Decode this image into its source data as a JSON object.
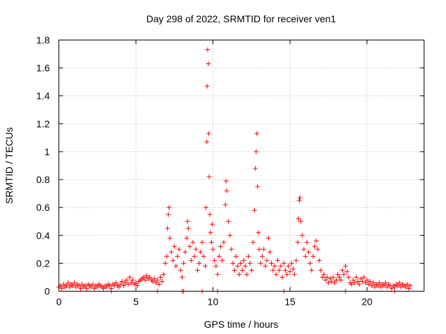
{
  "chart_data": {
    "type": "scatter",
    "title": "Day 298 of 2022, SRMTID for receiver ven1",
    "xlabel": "GPS time / hours",
    "ylabel": "SRMTID / TECUs",
    "xlim": [
      0,
      23.7
    ],
    "ylim": [
      0,
      1.8
    ],
    "xticks": [
      0,
      5,
      10,
      15,
      20
    ],
    "xtick_labels": [
      "0",
      "5",
      "10",
      "15",
      "20"
    ],
    "yticks": [
      0,
      0.2,
      0.4,
      0.6,
      0.8,
      1,
      1.2,
      1.4,
      1.6,
      1.8
    ],
    "ytick_labels": [
      "0",
      "0.2",
      "0.4",
      "0.6",
      "0.8",
      "1",
      "1.2",
      "1.4",
      "1.6",
      "1.8"
    ],
    "grid": true,
    "marker": "plus",
    "series_color": "#ff0000",
    "series": [
      {
        "name": "SRMTID",
        "points": [
          [
            0.0,
            0.03
          ],
          [
            0.1,
            0.04
          ],
          [
            0.2,
            0.02
          ],
          [
            0.3,
            0.05
          ],
          [
            0.4,
            0.03
          ],
          [
            0.5,
            0.04
          ],
          [
            0.6,
            0.06
          ],
          [
            0.7,
            0.03
          ],
          [
            0.8,
            0.05
          ],
          [
            0.9,
            0.04
          ],
          [
            1.0,
            0.06
          ],
          [
            1.1,
            0.03
          ],
          [
            1.2,
            0.05
          ],
          [
            1.3,
            0.04
          ],
          [
            1.4,
            0.02
          ],
          [
            1.5,
            0.05
          ],
          [
            1.6,
            0.03
          ],
          [
            1.7,
            0.04
          ],
          [
            1.8,
            0.02
          ],
          [
            1.9,
            0.05
          ],
          [
            2.0,
            0.04
          ],
          [
            2.1,
            0.03
          ],
          [
            2.2,
            0.05
          ],
          [
            2.3,
            0.02
          ],
          [
            2.4,
            0.04
          ],
          [
            2.5,
            0.03
          ],
          [
            2.6,
            0.05
          ],
          [
            2.7,
            0.04
          ],
          [
            2.8,
            0.03
          ],
          [
            2.9,
            0.02
          ],
          [
            3.0,
            0.04
          ],
          [
            3.1,
            0.03
          ],
          [
            3.2,
            0.05
          ],
          [
            3.3,
            0.04
          ],
          [
            3.4,
            0.02
          ],
          [
            3.5,
            0.05
          ],
          [
            3.6,
            0.04
          ],
          [
            3.7,
            0.06
          ],
          [
            3.8,
            0.04
          ],
          [
            3.9,
            0.03
          ],
          [
            4.0,
            0.05
          ],
          [
            4.1,
            0.07
          ],
          [
            4.2,
            0.04
          ],
          [
            4.3,
            0.06
          ],
          [
            4.4,
            0.08
          ],
          [
            4.5,
            0.05
          ],
          [
            4.6,
            0.1
          ],
          [
            4.7,
            0.06
          ],
          [
            4.8,
            0.08
          ],
          [
            4.9,
            0.05
          ],
          [
            5.0,
            0.06
          ],
          [
            5.1,
            0.04
          ],
          [
            5.2,
            0.07
          ],
          [
            5.3,
            0.08
          ],
          [
            5.4,
            0.09
          ],
          [
            5.5,
            0.1
          ],
          [
            5.6,
            0.08
          ],
          [
            5.7,
            0.11
          ],
          [
            5.8,
            0.09
          ],
          [
            5.9,
            0.1
          ],
          [
            6.0,
            0.08
          ],
          [
            6.1,
            0.07
          ],
          [
            6.2,
            0.09
          ],
          [
            6.3,
            0.06
          ],
          [
            6.4,
            0.08
          ],
          [
            6.5,
            0.05
          ],
          [
            6.6,
            0.1
          ],
          [
            6.7,
            0.07
          ],
          [
            6.8,
            0.12
          ],
          [
            6.9,
            0.2
          ],
          [
            7.0,
            0.25
          ],
          [
            7.05,
            0.45
          ],
          [
            7.1,
            0.55
          ],
          [
            7.15,
            0.6
          ],
          [
            7.2,
            0.38
          ],
          [
            7.3,
            0.28
          ],
          [
            7.4,
            0.22
          ],
          [
            7.5,
            0.32
          ],
          [
            7.6,
            0.18
          ],
          [
            7.7,
            0.25
          ],
          [
            7.8,
            0.3
          ],
          [
            7.9,
            0.15
          ],
          [
            8.0,
            0.1
          ],
          [
            8.1,
            0.2
          ],
          [
            8.2,
            0.28
          ],
          [
            8.3,
            0.38
          ],
          [
            8.35,
            0.5
          ],
          [
            8.4,
            0.45
          ],
          [
            8.5,
            0.32
          ],
          [
            8.6,
            0.22
          ],
          [
            8.7,
            0.35
          ],
          [
            8.8,
            0.25
          ],
          [
            8.9,
            0.3
          ],
          [
            9.0,
            0.15
          ],
          [
            9.1,
            0.2
          ],
          [
            9.2,
            0.28
          ],
          [
            9.3,
            0.35
          ],
          [
            9.4,
            0.25
          ],
          [
            9.5,
            0.18
          ],
          [
            9.55,
            0.6
          ],
          [
            9.6,
            1.07
          ],
          [
            9.62,
            1.47
          ],
          [
            9.65,
            1.73
          ],
          [
            9.7,
            1.63
          ],
          [
            9.72,
            1.13
          ],
          [
            9.75,
            0.82
          ],
          [
            9.8,
            0.55
          ],
          [
            9.85,
            0.42
          ],
          [
            9.9,
            0.35
          ],
          [
            9.95,
            0.48
          ],
          [
            10.0,
            0.3
          ],
          [
            10.1,
            0.22
          ],
          [
            10.2,
            0.18
          ],
          [
            10.3,
            0.12
          ],
          [
            10.4,
            0.25
          ],
          [
            10.5,
            0.32
          ],
          [
            10.6,
            0.22
          ],
          [
            10.7,
            0.35
          ],
          [
            10.8,
            0.62
          ],
          [
            10.85,
            0.79
          ],
          [
            10.9,
            0.72
          ],
          [
            11.0,
            0.5
          ],
          [
            11.1,
            0.4
          ],
          [
            11.2,
            0.3
          ],
          [
            11.3,
            0.2
          ],
          [
            11.4,
            0.15
          ],
          [
            11.5,
            0.25
          ],
          [
            11.6,
            0.18
          ],
          [
            11.7,
            0.12
          ],
          [
            11.8,
            0.2
          ],
          [
            11.9,
            0.15
          ],
          [
            12.0,
            0.22
          ],
          [
            12.1,
            0.18
          ],
          [
            12.2,
            0.12
          ],
          [
            12.3,
            0.25
          ],
          [
            12.4,
            0.2
          ],
          [
            12.5,
            0.15
          ],
          [
            12.6,
            0.35
          ],
          [
            12.7,
            0.58
          ],
          [
            12.75,
            0.88
          ],
          [
            12.8,
            1.0
          ],
          [
            12.85,
            1.13
          ],
          [
            12.9,
            0.75
          ],
          [
            12.95,
            0.42
          ],
          [
            13.0,
            0.3
          ],
          [
            13.1,
            0.2
          ],
          [
            13.2,
            0.25
          ],
          [
            13.3,
            0.3
          ],
          [
            13.4,
            0.18
          ],
          [
            13.5,
            0.22
          ],
          [
            13.6,
            0.38
          ],
          [
            13.7,
            0.28
          ],
          [
            13.8,
            0.2
          ],
          [
            13.9,
            0.15
          ],
          [
            14.0,
            0.18
          ],
          [
            14.1,
            0.12
          ],
          [
            14.2,
            0.22
          ],
          [
            14.3,
            0.15
          ],
          [
            14.4,
            0.18
          ],
          [
            14.5,
            0.1
          ],
          [
            14.6,
            0.2
          ],
          [
            14.7,
            0.15
          ],
          [
            14.8,
            0.12
          ],
          [
            14.9,
            0.18
          ],
          [
            15.0,
            0.14
          ],
          [
            15.1,
            0.2
          ],
          [
            15.2,
            0.16
          ],
          [
            15.3,
            0.12
          ],
          [
            15.4,
            0.22
          ],
          [
            15.5,
            0.35
          ],
          [
            15.55,
            0.52
          ],
          [
            15.6,
            0.65
          ],
          [
            15.65,
            0.67
          ],
          [
            15.7,
            0.5
          ],
          [
            15.8,
            0.4
          ],
          [
            15.9,
            0.3
          ],
          [
            16.0,
            0.25
          ],
          [
            16.1,
            0.35
          ],
          [
            16.2,
            0.28
          ],
          [
            16.3,
            0.2
          ],
          [
            16.4,
            0.15
          ],
          [
            16.5,
            0.25
          ],
          [
            16.6,
            0.32
          ],
          [
            16.7,
            0.36
          ],
          [
            16.8,
            0.3
          ],
          [
            16.9,
            0.22
          ],
          [
            17.0,
            0.15
          ],
          [
            17.1,
            0.1
          ],
          [
            17.2,
            0.12
          ],
          [
            17.3,
            0.08
          ],
          [
            17.4,
            0.1
          ],
          [
            17.5,
            0.06
          ],
          [
            17.6,
            0.09
          ],
          [
            17.7,
            0.07
          ],
          [
            17.8,
            0.1
          ],
          [
            17.9,
            0.06
          ],
          [
            18.0,
            0.08
          ],
          [
            18.1,
            0.12
          ],
          [
            18.2,
            0.1
          ],
          [
            18.3,
            0.08
          ],
          [
            18.4,
            0.15
          ],
          [
            18.5,
            0.12
          ],
          [
            18.6,
            0.18
          ],
          [
            18.7,
            0.14
          ],
          [
            18.8,
            0.1
          ],
          [
            18.9,
            0.06
          ],
          [
            19.0,
            0.05
          ],
          [
            19.1,
            0.08
          ],
          [
            19.2,
            0.06
          ],
          [
            19.3,
            0.1
          ],
          [
            19.4,
            0.07
          ],
          [
            19.5,
            0.05
          ],
          [
            19.6,
            0.09
          ],
          [
            19.7,
            0.07
          ],
          [
            19.8,
            0.1
          ],
          [
            19.9,
            0.06
          ],
          [
            20.0,
            0.08
          ],
          [
            20.1,
            0.05
          ],
          [
            20.2,
            0.07
          ],
          [
            20.3,
            0.04
          ],
          [
            20.4,
            0.06
          ],
          [
            20.5,
            0.03
          ],
          [
            20.6,
            0.05
          ],
          [
            20.7,
            0.04
          ],
          [
            20.8,
            0.06
          ],
          [
            20.9,
            0.03
          ],
          [
            21.0,
            0.05
          ],
          [
            21.1,
            0.04
          ],
          [
            21.2,
            0.06
          ],
          [
            21.3,
            0.03
          ],
          [
            21.4,
            0.05
          ],
          [
            21.5,
            0.04
          ],
          [
            21.6,
            0.02
          ],
          [
            21.7,
            0.04
          ],
          [
            21.8,
            0.03
          ],
          [
            21.9,
            0.05
          ],
          [
            22.0,
            0.04
          ],
          [
            22.1,
            0.06
          ],
          [
            22.2,
            0.03
          ],
          [
            22.3,
            0.05
          ],
          [
            22.4,
            0.04
          ],
          [
            22.5,
            0.03
          ],
          [
            22.6,
            0.05
          ],
          [
            22.7,
            0.02
          ],
          [
            22.8,
            0.04
          ],
          [
            3.4,
            0.0
          ],
          [
            6.4,
            0.0
          ],
          [
            8.0,
            0.0
          ],
          [
            8.1,
            0.0
          ],
          [
            9.3,
            0.0
          ],
          [
            10.3,
            0.0
          ],
          [
            14.6,
            0.0
          ],
          [
            18.6,
            0.0
          ],
          [
            21.8,
            0.0
          ]
        ]
      }
    ]
  }
}
